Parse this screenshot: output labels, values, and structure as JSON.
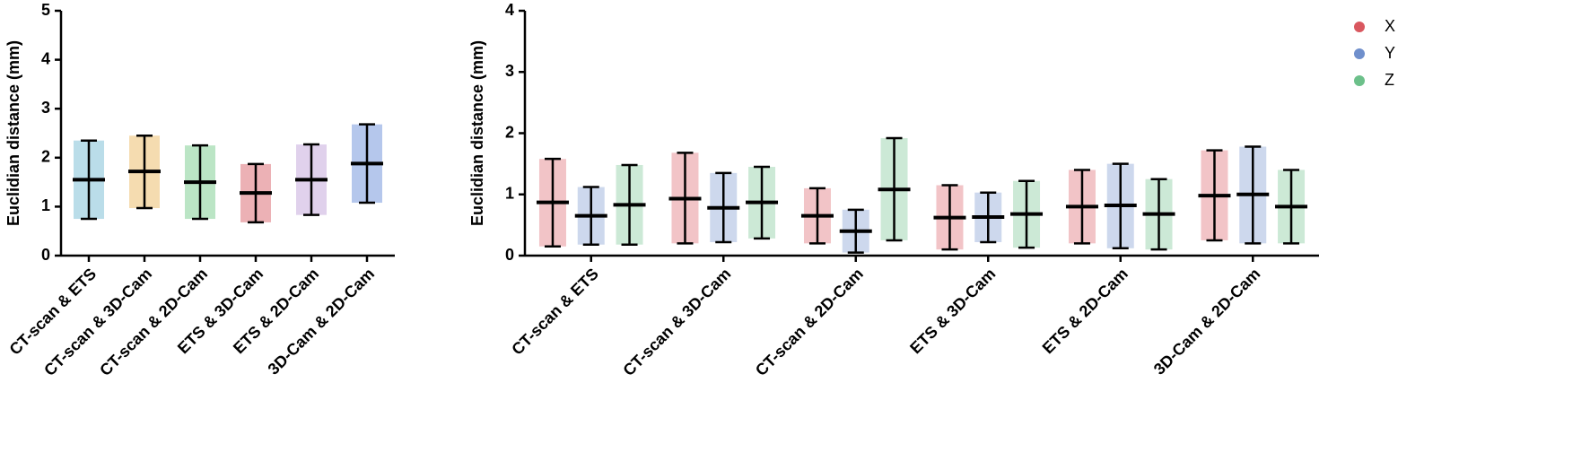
{
  "chart_data": [
    {
      "type": "dot",
      "ylabel": "Euclidian distance (mm)",
      "categories": [
        "CT-scan & ETS",
        "CT-scan & 3D-Cam",
        "CT-scan & 2D-Cam",
        "ETS & 3D-Cam",
        "ETS & 2D-Cam",
        "3D-Cam & 2D-Cam"
      ],
      "ylim": [
        0,
        5
      ],
      "yticks": [
        0,
        1,
        2,
        3,
        4,
        5
      ],
      "series": [
        {
          "colors": [
            "#3a9fc0",
            "#e39a1c",
            "#3db45a",
            "#c8202a",
            "#a77cc8",
            "#2a5fc8"
          ],
          "values": [
            1.55,
            1.72,
            1.5,
            1.28,
            1.55,
            1.88
          ],
          "lower": [
            0.75,
            0.97,
            0.75,
            0.68,
            0.83,
            1.08
          ],
          "upper": [
            2.35,
            2.45,
            2.25,
            1.87,
            2.27,
            2.68
          ]
        }
      ]
    },
    {
      "type": "dot",
      "ylabel": "Euclidian distance (mm)",
      "categories": [
        "CT-scan & ETS",
        "CT-scan & 3D-Cam",
        "CT-scan & 2D-Cam",
        "ETS & 3D-Cam",
        "ETS & 2D-Cam",
        "3D-Cam & 2D-Cam"
      ],
      "ylim": [
        0,
        4
      ],
      "yticks": [
        0,
        1,
        2,
        3,
        4
      ],
      "legend": "upper right",
      "series": [
        {
          "name": "X",
          "color": "#d9575f",
          "values": [
            0.87,
            0.93,
            0.65,
            0.62,
            0.8,
            0.98
          ],
          "lower": [
            0.15,
            0.2,
            0.2,
            0.1,
            0.2,
            0.25
          ],
          "upper": [
            1.58,
            1.68,
            1.1,
            1.15,
            1.4,
            1.72
          ]
        },
        {
          "name": "Y",
          "color": "#6f8fcc",
          "values": [
            0.65,
            0.78,
            0.4,
            0.63,
            0.82,
            1.0
          ],
          "lower": [
            0.18,
            0.22,
            0.05,
            0.22,
            0.12,
            0.2
          ],
          "upper": [
            1.12,
            1.35,
            0.75,
            1.03,
            1.5,
            1.78
          ]
        },
        {
          "name": "Z",
          "color": "#6cc08a",
          "values": [
            0.83,
            0.87,
            1.08,
            0.68,
            0.68,
            0.8
          ],
          "lower": [
            0.18,
            0.28,
            0.25,
            0.13,
            0.1,
            0.2
          ],
          "upper": [
            1.48,
            1.45,
            1.92,
            1.22,
            1.25,
            1.4
          ]
        }
      ]
    }
  ]
}
